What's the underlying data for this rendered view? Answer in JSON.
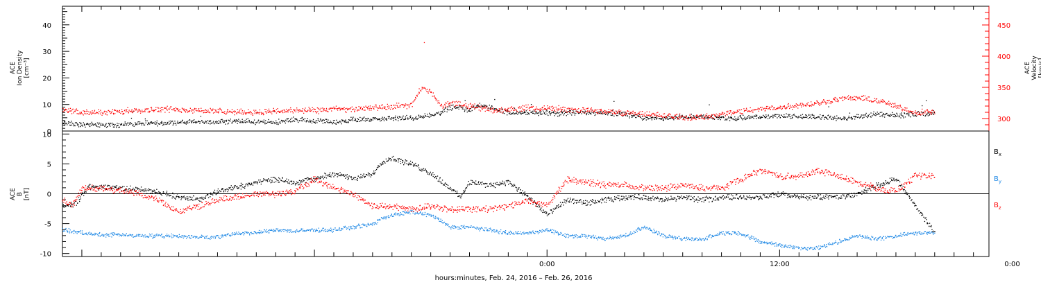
{
  "colors": {
    "black": "#000000",
    "red": "#ff0000",
    "blue": "#1e88e5"
  },
  "x_axis": {
    "title": "hours:minutes, Feb. 24, 2016 – Feb. 26, 2016",
    "range_hours": [
      -25.0,
      22.8
    ],
    "ticks": [
      {
        "hour": 0,
        "label": "0:00"
      },
      {
        "hour": 12,
        "label": "12:00"
      },
      {
        "hour": 24,
        "label": "0:00"
      }
    ]
  },
  "panels": [
    {
      "id": "plasma",
      "left_label": [
        "ACE",
        "Ion Density",
        "[cm⁻³]"
      ],
      "right_label": [
        "ACE",
        "Velocity",
        "[km/s]"
      ],
      "left_range": [
        0,
        47
      ],
      "left_ticks": [
        0,
        10,
        20,
        30,
        40
      ],
      "right_range": [
        280,
        480
      ],
      "right_ticks": [
        {
          "v": 300,
          "l": "300"
        },
        {
          "v": 350,
          "l": "350"
        },
        {
          "v": 400,
          "l": "400"
        },
        {
          "v": 450,
          "l": "450"
        }
      ]
    },
    {
      "id": "mag",
      "left_label": [
        "ACE",
        "B",
        "[nT]"
      ],
      "left_range": [
        -10.5,
        10.5
      ],
      "left_ticks": [
        -10,
        -5,
        0,
        5,
        10
      ],
      "legend": [
        {
          "name": "Bx",
          "base": "B",
          "sub": "x",
          "color": "#000000"
        },
        {
          "name": "By",
          "base": "B",
          "sub": "y",
          "color": "#1e88e5"
        },
        {
          "name": "Bz",
          "base": "B",
          "sub": "z",
          "color": "#ff0000"
        }
      ]
    }
  ],
  "chart_data": [
    {
      "type": "scatter",
      "title": "",
      "xlabel": "hours:minutes, Feb. 24, 2016 – Feb. 26, 2016",
      "ylabel": "ACE Ion Density [cm⁻³]",
      "ylabel_right": "ACE Velocity [km/s]",
      "xlim": [
        -25.0,
        22.8
      ],
      "ylim": [
        0,
        47
      ],
      "ylim_right": [
        280,
        480
      ],
      "grid": false,
      "series": [
        {
          "name": "Ion Density",
          "axis": "left",
          "color": "#000000",
          "x": [
            -25,
            -24,
            -23,
            -22,
            -21,
            -20,
            -19,
            -18,
            -17,
            -16,
            -15,
            -14,
            -13,
            -12,
            -11,
            -10,
            -9,
            -8,
            -7,
            -6,
            -5.5,
            -5,
            -4.5,
            -4,
            -3.5,
            -3,
            -2.5,
            -2,
            -1.5,
            -1,
            -0.5,
            0,
            0.5,
            1,
            2,
            3,
            4,
            5,
            6,
            7,
            8,
            9,
            10,
            11,
            12,
            13,
            14,
            15,
            16,
            17,
            18,
            19,
            20
          ],
          "y": [
            3,
            2.5,
            2.5,
            2.5,
            3,
            3,
            3.5,
            3.5,
            3.5,
            4,
            3.5,
            3.5,
            4.5,
            4,
            3.5,
            4.5,
            4.5,
            5,
            5,
            6,
            7,
            9,
            9,
            8,
            10,
            9,
            8,
            7,
            7,
            7,
            7,
            7,
            6.5,
            7,
            7,
            7,
            6.5,
            5,
            5,
            5.5,
            5.5,
            5,
            5,
            5.5,
            6,
            5.5,
            5.5,
            5,
            5.5,
            6.5,
            6,
            6.5,
            7
          ]
        },
        {
          "name": "Velocity",
          "axis": "right",
          "color": "#ff0000",
          "x": [
            -25,
            -24,
            -23,
            -22,
            -21,
            -20,
            -19,
            -18,
            -17,
            -16,
            -15,
            -14,
            -13,
            -12,
            -11,
            -10,
            -9,
            -8,
            -7,
            -6.5,
            -6,
            -5.5,
            -5,
            -4.5,
            -4,
            -3.5,
            -3,
            -2.5,
            -2,
            -1.5,
            -1,
            -0.5,
            0,
            1,
            2,
            3,
            4,
            5,
            6,
            7,
            8,
            9,
            10,
            11,
            12,
            13,
            14,
            15,
            16,
            17,
            18,
            19,
            20
          ],
          "y": [
            313,
            311,
            310,
            312,
            314,
            316,
            315,
            314,
            312,
            311,
            311,
            312,
            314,
            313,
            316,
            315,
            318,
            320,
            322,
            350,
            344,
            320,
            326,
            322,
            322,
            318,
            315,
            314,
            315,
            316,
            318,
            316,
            318,
            315,
            314,
            312,
            310,
            308,
            305,
            303,
            302,
            308,
            312,
            316,
            318,
            322,
            326,
            332,
            334,
            330,
            320,
            310,
            312
          ]
        }
      ]
    },
    {
      "type": "scatter",
      "title": "",
      "xlabel": "hours:minutes, Feb. 24, 2016 – Feb. 26, 2016",
      "ylabel": "ACE B [nT]",
      "xlim": [
        -25.0,
        22.8
      ],
      "ylim": [
        -10.5,
        10.5
      ],
      "grid": false,
      "series": [
        {
          "name": "Bx",
          "color": "#000000",
          "x": [
            -25,
            -24.3,
            -23.7,
            -23,
            -22,
            -21,
            -20,
            -19,
            -18,
            -17,
            -16,
            -15,
            -14,
            -13,
            -12,
            -11,
            -10,
            -9,
            -8.5,
            -8,
            -7,
            -6,
            -5,
            -4.5,
            -4,
            -3,
            -2,
            -1,
            0,
            1,
            2,
            3,
            4,
            5,
            6,
            7,
            8,
            9,
            10,
            11,
            12,
            13,
            14,
            15,
            16,
            17,
            18,
            19,
            20
          ],
          "y": [
            -2,
            -1.5,
            1.2,
            1.2,
            1.0,
            0.8,
            0.3,
            -0.5,
            -0.8,
            0.5,
            1.2,
            2.0,
            2.5,
            2.0,
            2.5,
            3.5,
            2.5,
            3.5,
            5.5,
            6.0,
            5.0,
            3.5,
            1.0,
            -0.5,
            2.0,
            1.5,
            2.0,
            -0.5,
            -3.5,
            -1.0,
            -1.5,
            -1.0,
            -0.5,
            -0.5,
            -1.0,
            -0.5,
            -1.0,
            -0.5,
            -0.5,
            -0.5,
            0,
            -0.5,
            -0.5,
            -0.5,
            0,
            1.5,
            2.5,
            -2.0,
            -6.5
          ]
        },
        {
          "name": "By",
          "color": "#1e88e5",
          "x": [
            -25,
            -24,
            -23,
            -22,
            -21,
            -20,
            -19,
            -18,
            -17,
            -16,
            -15,
            -14,
            -13,
            -12,
            -11,
            -10,
            -9,
            -8.5,
            -8,
            -7,
            -6,
            -5,
            -4,
            -3,
            -2,
            -1,
            0,
            1,
            2,
            3,
            4,
            5,
            6,
            7,
            8,
            9,
            10,
            11,
            12,
            13,
            14,
            15,
            16,
            17,
            18,
            19,
            20
          ],
          "y": [
            -6,
            -6.5,
            -6.8,
            -6.8,
            -7,
            -7,
            -7,
            -7.2,
            -7.2,
            -6.5,
            -6.5,
            -6,
            -6.2,
            -6,
            -6,
            -5.5,
            -5,
            -4,
            -3.5,
            -3,
            -3.5,
            -5.5,
            -5.5,
            -6,
            -6.5,
            -6.5,
            -6,
            -7,
            -7,
            -7.5,
            -7,
            -5.5,
            -7,
            -7.5,
            -7.5,
            -6.5,
            -6.5,
            -8,
            -8.5,
            -9,
            -9,
            -8,
            -7,
            -7.5,
            -7,
            -6.5,
            -6.5
          ]
        },
        {
          "name": "Bz",
          "color": "#ff0000",
          "x": [
            -25,
            -24.5,
            -24,
            -23,
            -22,
            -21,
            -20,
            -19,
            -18,
            -17,
            -16,
            -15,
            -14,
            -13,
            -12,
            -11,
            -10,
            -9,
            -8,
            -7,
            -6,
            -5,
            -4,
            -3,
            -2,
            -1,
            0,
            1,
            2,
            3,
            4,
            5,
            6,
            7,
            8,
            9,
            10,
            11,
            12,
            13,
            14,
            15,
            16,
            17,
            18,
            19,
            20
          ],
          "y": [
            -1,
            -2,
            1,
            1,
            0.5,
            0,
            -1,
            -3,
            -2,
            -1,
            -0.5,
            0,
            0,
            0.5,
            2.5,
            1,
            0,
            -2,
            -2,
            -2.5,
            -2,
            -2.5,
            -2.5,
            -2.5,
            -2,
            -1,
            -2,
            2.5,
            2,
            1.5,
            1.5,
            1,
            1,
            1.5,
            1,
            1,
            2.5,
            4,
            3,
            3,
            4,
            3,
            2,
            1,
            0.5,
            3,
            3
          ]
        }
      ]
    }
  ]
}
